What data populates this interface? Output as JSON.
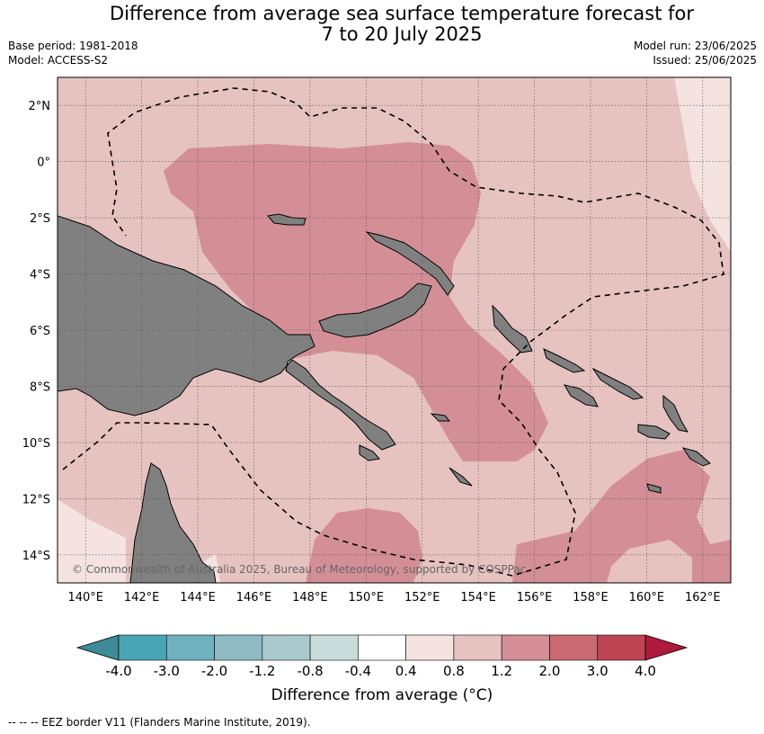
{
  "header": {
    "title_line1": "Difference from average sea surface temperature forecast for",
    "title_line2": "7 to 20 July 2025",
    "base_period": "Base period: 1981-2018",
    "model": "Model: ACCESS-S2",
    "model_run": "Model run: 23/06/2025",
    "issued": "Issued: 25/06/2025"
  },
  "map": {
    "lon_range": [
      139,
      163
    ],
    "lat_range": [
      -15,
      3
    ],
    "lon_ticks": [
      {
        "value": 140,
        "label": "140°E"
      },
      {
        "value": 142,
        "label": "142°E"
      },
      {
        "value": 144,
        "label": "144°E"
      },
      {
        "value": 146,
        "label": "146°E"
      },
      {
        "value": 148,
        "label": "148°E"
      },
      {
        "value": 150,
        "label": "150°E"
      },
      {
        "value": 152,
        "label": "152°E"
      },
      {
        "value": 154,
        "label": "154°E"
      },
      {
        "value": 156,
        "label": "156°E"
      },
      {
        "value": 158,
        "label": "158°E"
      },
      {
        "value": 160,
        "label": "160°E"
      },
      {
        "value": 162,
        "label": "162°E"
      }
    ],
    "lat_ticks": [
      {
        "value": 2,
        "label": "2°N"
      },
      {
        "value": 0,
        "label": "0°"
      },
      {
        "value": -2,
        "label": "2°S"
      },
      {
        "value": -4,
        "label": "4°S"
      },
      {
        "value": -6,
        "label": "6°S"
      },
      {
        "value": -8,
        "label": "8°S"
      },
      {
        "value": -10,
        "label": "10°S"
      },
      {
        "value": -12,
        "label": "12°S"
      },
      {
        "value": -14,
        "label": "14°S"
      }
    ],
    "gridlines": true,
    "land_color": "#808080",
    "copyright": "© Commonwealth of Australia 2025, Bureau of Meteorology, supported by COSPPac",
    "eez_border_style": "black dashed"
  },
  "colorbar": {
    "colors": [
      "#3d8b96",
      "#4aa5b4",
      "#6fb1bf",
      "#8fb9c3",
      "#aac9cd",
      "#cadbdc",
      "#ffffff",
      "#f4e3e1",
      "#e6c3c0",
      "#d48f96",
      "#ca6a73",
      "#bf4453",
      "#b01a3a"
    ],
    "labels": [
      "-4.0",
      "-3.0",
      "-2.0",
      "-1.2",
      "-0.8",
      "-0.4",
      "0.4",
      "0.8",
      "1.2",
      "2.0",
      "3.0",
      "4.0"
    ],
    "title": "Difference from average (°C)",
    "extend": "both"
  },
  "footnote": "--  --  -- EEZ border V11 (Flanders Marine Institute, 2019)."
}
